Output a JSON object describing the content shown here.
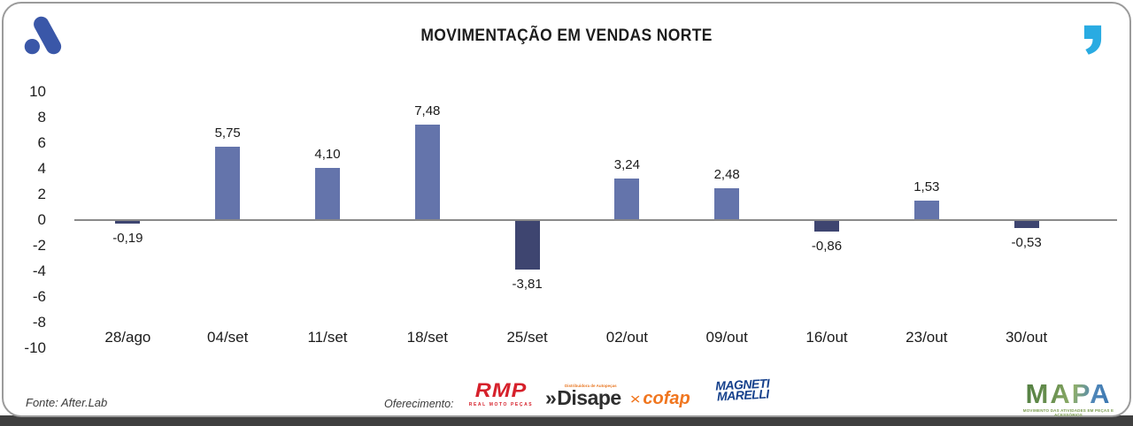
{
  "header": {
    "title": "MOVIMENTAÇÃO EM VENDAS NORTE"
  },
  "branding": {
    "top_left_logo": "after-lab-mark",
    "top_left_color": "#3a57a8",
    "top_right_icon": "quote-mark",
    "top_right_color": "#29abe2"
  },
  "chart_data": {
    "type": "bar",
    "title": "MOVIMENTAÇÃO EM VENDAS NORTE",
    "categories": [
      "28/ago",
      "04/set",
      "11/set",
      "18/set",
      "25/set",
      "02/out",
      "09/out",
      "16/out",
      "23/out",
      "30/out"
    ],
    "values": [
      -0.19,
      5.75,
      4.1,
      7.48,
      -3.81,
      3.24,
      2.48,
      -0.86,
      1.53,
      -0.53
    ],
    "labels": [
      "-0,19",
      "5,75",
      "4,10",
      "7,48",
      "-3,81",
      "3,24",
      "2,48",
      "-0,86",
      "1,53",
      "-0,53"
    ],
    "ylim": [
      -10,
      10
    ],
    "ytick_step": 2,
    "yticks": [
      "10",
      "8",
      "6",
      "4",
      "2",
      "0",
      "-2",
      "-4",
      "-6",
      "-8",
      "-10"
    ],
    "positive_color": "#6474ab",
    "negative_color": "#3e4570",
    "baseline_color": "#8a8a8a",
    "grid": false,
    "legend": null,
    "value_label_position": "outside-end",
    "decimal_separator": ","
  },
  "footer": {
    "source": "Fonte: After.Lab",
    "sponsor_label": "Oferecimento:",
    "sponsors": [
      {
        "name": "RMP",
        "subtext": "REAL MOTO PEÇAS",
        "color": "#d6212b"
      },
      {
        "name": "Disape",
        "prefix": "»",
        "subtext": "Distribuidora de Autopeças",
        "color": "#2e2e2e",
        "accent": "#e87722"
      },
      {
        "name": "cofap",
        "icon": "cofap-x-mark",
        "color": "#f0761f"
      },
      {
        "line1": "MAGNETI",
        "line2": "MARELLI",
        "color": "#16418c"
      }
    ],
    "mapa": {
      "name": "MAPA",
      "subtext": "MOVIMENTO DAS ATIVIDADES EM PEÇAS E ACESSÓRIOS"
    }
  }
}
